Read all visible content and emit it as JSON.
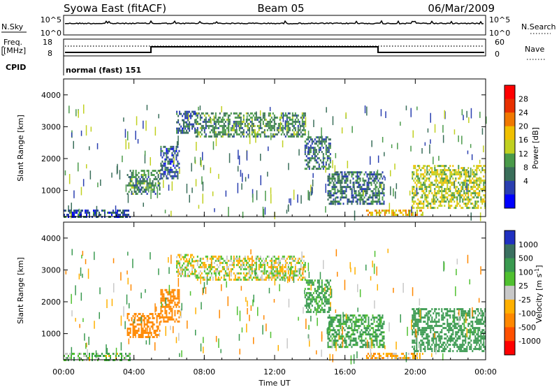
{
  "header": {
    "station": "Syowa East (fitACF)",
    "beam": "Beam 05",
    "date": "06/Mar/2009"
  },
  "noise_panel": {
    "left_label": "N.Sky",
    "right_label": "N.Search",
    "left_ticks": [
      "10^5",
      "10^0"
    ],
    "right_ticks": [
      "10^5",
      "10^0"
    ]
  },
  "freq_panel": {
    "left_label_1": "Freq.",
    "left_label_2": "[MHz]",
    "right_label": "Nave",
    "left_ticks": [
      "18",
      "8"
    ],
    "right_ticks": [
      "60",
      "0"
    ]
  },
  "cpid_panel": {
    "label": "CPID",
    "mode": "normal (fast) 151"
  },
  "colors": {
    "power_scale": [
      "#0000ff",
      "#2a3fb0",
      "#3a6e5a",
      "#4a9a4a",
      "#c0d020",
      "#f0c000",
      "#f07800",
      "#e83000",
      "#ff0000"
    ],
    "velocity_scale": [
      "#ff0000",
      "#ff5000",
      "#ff8800",
      "#ffb000",
      "#c8c8c8",
      "#50c030",
      "#3a9a50",
      "#3a7060",
      "#2030c0"
    ]
  },
  "chart_data": [
    {
      "type": "heatmap",
      "quantity": "Power",
      "ylabel": "Slant Range [km]",
      "ylim": [
        180,
        4500
      ],
      "yticks": [
        "4000",
        "3000",
        "2000",
        "1000"
      ],
      "colorbar_label": "Power [dB]",
      "colorbar_ticks": [
        "28",
        "24",
        "20",
        "16",
        "12",
        "8",
        "4"
      ],
      "x_ticks": [
        "00:00",
        "04:00",
        "08:00",
        "12:00",
        "16:00",
        "20:00",
        "00:00"
      ],
      "xlabel": "",
      "echo_regions": [
        {
          "t_start": 3.6,
          "t_end": 5.5,
          "r_start": 900,
          "r_end": 1650,
          "value": 12
        },
        {
          "t_start": 5.5,
          "t_end": 6.6,
          "r_start": 1400,
          "r_end": 2400,
          "value": 8
        },
        {
          "t_start": 6.4,
          "t_end": 7.5,
          "r_start": 2800,
          "r_end": 3500,
          "value": 8
        },
        {
          "t_start": 7.5,
          "t_end": 13.7,
          "r_start": 2700,
          "r_end": 3450,
          "value": 12
        },
        {
          "t_start": 13.7,
          "t_end": 15.2,
          "r_start": 1700,
          "r_end": 2700,
          "value": 10
        },
        {
          "t_start": 15.0,
          "t_end": 18.2,
          "r_start": 600,
          "r_end": 1600,
          "value": 10
        },
        {
          "t_start": 17.2,
          "t_end": 20.4,
          "r_start": 250,
          "r_end": 400,
          "value": 22
        },
        {
          "t_start": 19.8,
          "t_end": 24.0,
          "r_start": 450,
          "r_end": 1800,
          "value": 18
        },
        {
          "t_start": 0.0,
          "t_end": 3.8,
          "r_start": 200,
          "r_end": 400,
          "value": 8
        }
      ]
    },
    {
      "type": "heatmap",
      "quantity": "Velocity",
      "ylabel": "Slant Range [km]",
      "ylim": [
        180,
        4500
      ],
      "yticks": [
        "4000",
        "3000",
        "2000",
        "1000"
      ],
      "colorbar_label": "Velocity [m s^-1]",
      "colorbar_ticks": [
        "1000",
        "500",
        "100",
        "25",
        "-25",
        "-100",
        "-500",
        "-1000"
      ],
      "x_ticks": [
        "00:00",
        "04:00",
        "08:00",
        "12:00",
        "16:00",
        "20:00",
        "00:00"
      ],
      "xlabel": "Time UT",
      "echo_regions": [
        {
          "t_start": 3.6,
          "t_end": 5.5,
          "r_start": 900,
          "r_end": 1650,
          "value": -300
        },
        {
          "t_start": 5.5,
          "t_end": 6.6,
          "r_start": 1400,
          "r_end": 2400,
          "value": -200
        },
        {
          "t_start": 6.4,
          "t_end": 7.5,
          "r_start": 2800,
          "r_end": 3500,
          "value": 0
        },
        {
          "t_start": 7.5,
          "t_end": 13.7,
          "r_start": 2700,
          "r_end": 3450,
          "value": 0
        },
        {
          "t_start": 13.7,
          "t_end": 15.2,
          "r_start": 1700,
          "r_end": 2700,
          "value": 150
        },
        {
          "t_start": 15.0,
          "t_end": 18.2,
          "r_start": 600,
          "r_end": 1600,
          "value": 150
        },
        {
          "t_start": 17.2,
          "t_end": 20.4,
          "r_start": 250,
          "r_end": 400,
          "value": -80
        },
        {
          "t_start": 19.8,
          "t_end": 24.0,
          "r_start": 450,
          "r_end": 1800,
          "value": 300
        },
        {
          "t_start": 0.0,
          "t_end": 3.8,
          "r_start": 200,
          "r_end": 400,
          "value": 60
        }
      ]
    }
  ]
}
